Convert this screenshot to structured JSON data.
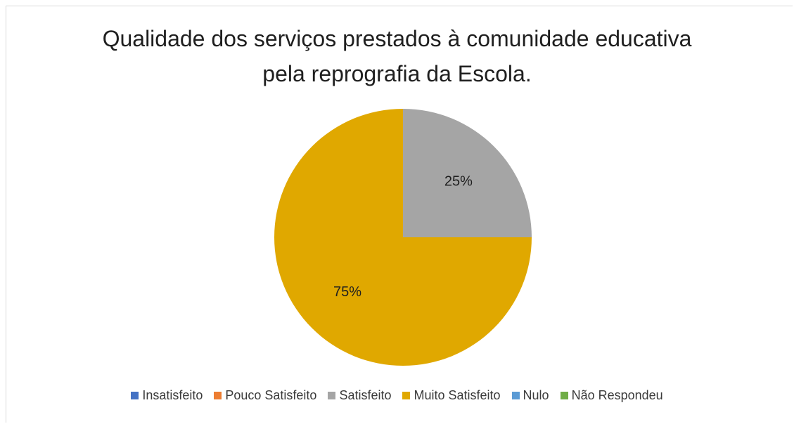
{
  "chart_data": {
    "type": "pie",
    "title_lines": [
      "Qualidade dos serviços prestados à comunidade educativa",
      "pela reprografia da Escola."
    ],
    "categories": [
      "Insatisfeito",
      "Pouco Satisfeito",
      "Satisfeito",
      "Muito Satisfeito",
      "Nulo",
      "Não Respondeu"
    ],
    "values": [
      0,
      0,
      25,
      75,
      0,
      0
    ],
    "colors": [
      "#4472c4",
      "#ed7d31",
      "#a5a5a5",
      "#e0a800",
      "#5b9bd5",
      "#70ad47"
    ],
    "labels": [
      "",
      "",
      "25%",
      "75%",
      "",
      ""
    ],
    "legend_position": "bottom"
  }
}
